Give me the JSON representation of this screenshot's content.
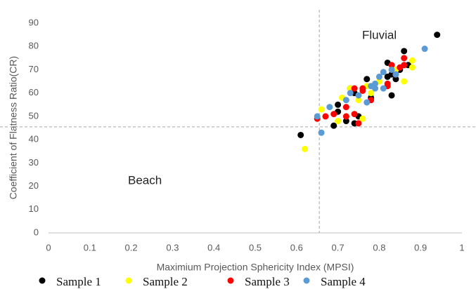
{
  "chart_data": {
    "type": "scatter",
    "x_label": "Maximium Projection Sphericity Index (MPSI)",
    "y_label": "Coefficient of Flatness Ratio(CR)",
    "annotations": [
      "Fluvial",
      "Beach"
    ],
    "xlim": [
      0,
      1
    ],
    "ylim": [
      0,
      90
    ],
    "xticks": [
      0,
      0.1,
      0.2,
      0.3,
      0.4,
      0.5,
      0.6,
      0.7,
      0.8,
      0.9,
      1
    ],
    "yticks": [
      0,
      10,
      20,
      30,
      40,
      50,
      60,
      70,
      80,
      90
    ],
    "reference_lines": {
      "x": 0.655,
      "y": 45.5
    },
    "legend": "bottom",
    "series": [
      {
        "name": "Sample 1",
        "color": "#000000",
        "x": [
          0.94,
          0.86,
          0.87,
          0.82,
          0.83,
          0.82,
          0.84,
          0.83,
          0.77,
          0.78,
          0.73,
          0.74,
          0.7,
          0.7,
          0.72,
          0.74,
          0.69,
          0.61,
          0.75,
          0.85
        ],
        "values": [
          85,
          78,
          72,
          73,
          68,
          67,
          66,
          59,
          66,
          58,
          62,
          60,
          55,
          52,
          48,
          47,
          46,
          42,
          50,
          70
        ]
      },
      {
        "name": "Sample 2",
        "color": "#ffff00",
        "x": [
          0.62,
          0.66,
          0.7,
          0.71,
          0.73,
          0.75,
          0.76,
          0.78,
          0.8,
          0.86,
          0.88,
          0.88,
          0.84,
          0.77,
          0.72
        ],
        "values": [
          36,
          53,
          48,
          58,
          62,
          57,
          49,
          60,
          65,
          65,
          74,
          71,
          70,
          63,
          50
        ]
      },
      {
        "name": "Sample 3",
        "color": "#ff0000",
        "x": [
          0.65,
          0.67,
          0.69,
          0.72,
          0.72,
          0.74,
          0.75,
          0.74,
          0.76,
          0.78,
          0.82,
          0.83,
          0.84,
          0.85,
          0.86,
          0.86,
          0.82,
          0.76
        ],
        "values": [
          49,
          50,
          51,
          54,
          50,
          51,
          47,
          62,
          61,
          57,
          64,
          72,
          68,
          71,
          75,
          72,
          63,
          62
        ]
      },
      {
        "name": "Sample 4",
        "color": "#5b9bd5",
        "x": [
          0.66,
          0.65,
          0.68,
          0.72,
          0.73,
          0.75,
          0.77,
          0.78,
          0.79,
          0.8,
          0.81,
          0.81,
          0.83,
          0.84,
          0.91,
          0.79
        ],
        "values": [
          43,
          50,
          54,
          57,
          60,
          59,
          56,
          63,
          64,
          67,
          69,
          62,
          70,
          68,
          79,
          62
        ]
      }
    ]
  }
}
